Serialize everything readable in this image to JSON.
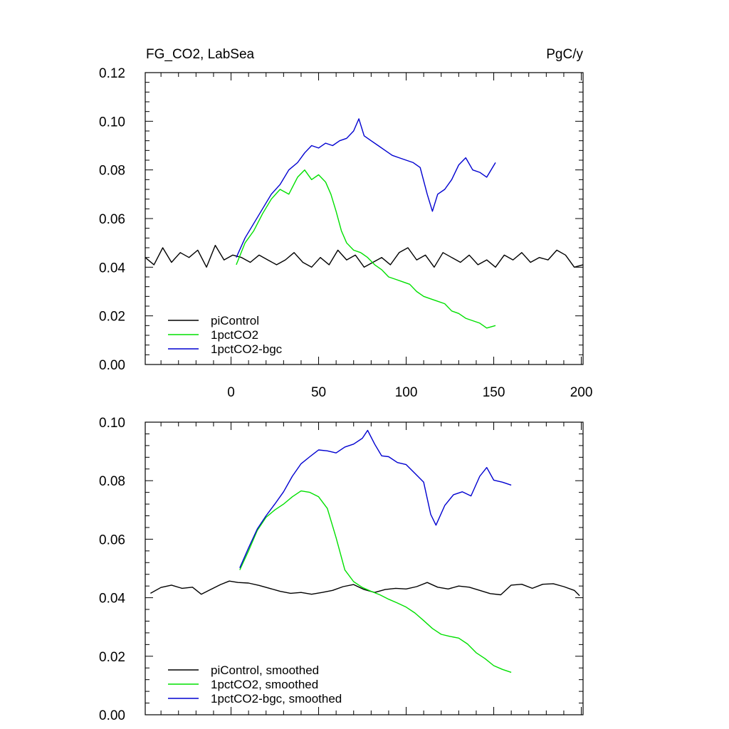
{
  "colors": {
    "piControl": "#000000",
    "1pctCO2": "#00e000",
    "1pctCO2-bgc": "#0000d0"
  },
  "chart_data": [
    {
      "type": "line",
      "title_left": "FG_CO2, LabSea",
      "title_right": "PgC/y",
      "xlim": [
        -49,
        201
      ],
      "ylim": [
        0,
        0.12
      ],
      "xticks": [
        "0",
        "50",
        "100",
        "150",
        "200"
      ],
      "yticks": [
        "0.00",
        "0.02",
        "0.04",
        "0.06",
        "0.08",
        "0.10",
        "0.12"
      ],
      "legend_position": "bottom-left",
      "series": [
        {
          "name": "piControl",
          "points": [
            [
              -49,
              0.044
            ],
            [
              -44,
              0.041
            ],
            [
              -39,
              0.048
            ],
            [
              -34,
              0.042
            ],
            [
              -29,
              0.046
            ],
            [
              -24,
              0.044
            ],
            [
              -19,
              0.047
            ],
            [
              -14,
              0.04
            ],
            [
              -9,
              0.049
            ],
            [
              -4,
              0.043
            ],
            [
              1,
              0.045
            ],
            [
              6,
              0.044
            ],
            [
              11,
              0.042
            ],
            [
              16,
              0.045
            ],
            [
              21,
              0.043
            ],
            [
              26,
              0.041
            ],
            [
              31,
              0.043
            ],
            [
              36,
              0.046
            ],
            [
              41,
              0.042
            ],
            [
              46,
              0.04
            ],
            [
              51,
              0.044
            ],
            [
              56,
              0.041
            ],
            [
              61,
              0.047
            ],
            [
              66,
              0.043
            ],
            [
              71,
              0.045
            ],
            [
              76,
              0.04
            ],
            [
              81,
              0.042
            ],
            [
              86,
              0.044
            ],
            [
              91,
              0.041
            ],
            [
              96,
              0.046
            ],
            [
              101,
              0.048
            ],
            [
              106,
              0.043
            ],
            [
              111,
              0.045
            ],
            [
              116,
              0.04
            ],
            [
              121,
              0.046
            ],
            [
              126,
              0.044
            ],
            [
              131,
              0.042
            ],
            [
              136,
              0.045
            ],
            [
              141,
              0.041
            ],
            [
              146,
              0.043
            ],
            [
              151,
              0.04
            ],
            [
              156,
              0.045
            ],
            [
              161,
              0.043
            ],
            [
              166,
              0.046
            ],
            [
              171,
              0.042
            ],
            [
              176,
              0.044
            ],
            [
              181,
              0.043
            ],
            [
              186,
              0.047
            ],
            [
              191,
              0.045
            ],
            [
              196,
              0.04
            ],
            [
              201,
              0.041
            ]
          ]
        },
        {
          "name": "1pctCO2",
          "points": [
            [
              3,
              0.041
            ],
            [
              8,
              0.05
            ],
            [
              13,
              0.055
            ],
            [
              18,
              0.062
            ],
            [
              23,
              0.068
            ],
            [
              28,
              0.072
            ],
            [
              33,
              0.07
            ],
            [
              38,
              0.077
            ],
            [
              42,
              0.08
            ],
            [
              46,
              0.076
            ],
            [
              50,
              0.078
            ],
            [
              54,
              0.075
            ],
            [
              57,
              0.07
            ],
            [
              60,
              0.063
            ],
            [
              63,
              0.055
            ],
            [
              66,
              0.05
            ],
            [
              70,
              0.047
            ],
            [
              74,
              0.046
            ],
            [
              78,
              0.044
            ],
            [
              82,
              0.041
            ],
            [
              86,
              0.039
            ],
            [
              90,
              0.036
            ],
            [
              94,
              0.035
            ],
            [
              98,
              0.034
            ],
            [
              102,
              0.033
            ],
            [
              106,
              0.03
            ],
            [
              110,
              0.028
            ],
            [
              114,
              0.027
            ],
            [
              118,
              0.026
            ],
            [
              122,
              0.025
            ],
            [
              126,
              0.022
            ],
            [
              130,
              0.021
            ],
            [
              134,
              0.019
            ],
            [
              138,
              0.018
            ],
            [
              142,
              0.017
            ],
            [
              146,
              0.015
            ],
            [
              151,
              0.016
            ]
          ]
        },
        {
          "name": "1pctCO2-bgc",
          "points": [
            [
              3,
              0.044
            ],
            [
              8,
              0.052
            ],
            [
              13,
              0.058
            ],
            [
              18,
              0.064
            ],
            [
              23,
              0.07
            ],
            [
              28,
              0.074
            ],
            [
              33,
              0.08
            ],
            [
              38,
              0.083
            ],
            [
              42,
              0.087
            ],
            [
              46,
              0.09
            ],
            [
              50,
              0.089
            ],
            [
              54,
              0.091
            ],
            [
              58,
              0.09
            ],
            [
              62,
              0.092
            ],
            [
              66,
              0.093
            ],
            [
              70,
              0.096
            ],
            [
              73,
              0.101
            ],
            [
              76,
              0.094
            ],
            [
              80,
              0.092
            ],
            [
              84,
              0.09
            ],
            [
              88,
              0.088
            ],
            [
              92,
              0.086
            ],
            [
              96,
              0.085
            ],
            [
              100,
              0.084
            ],
            [
              104,
              0.083
            ],
            [
              108,
              0.081
            ],
            [
              112,
              0.07
            ],
            [
              115,
              0.063
            ],
            [
              118,
              0.07
            ],
            [
              122,
              0.072
            ],
            [
              126,
              0.076
            ],
            [
              130,
              0.082
            ],
            [
              134,
              0.085
            ],
            [
              138,
              0.08
            ],
            [
              142,
              0.079
            ],
            [
              146,
              0.077
            ],
            [
              151,
              0.083
            ]
          ]
        }
      ]
    },
    {
      "type": "line",
      "xlim": [
        -49,
        201
      ],
      "ylim": [
        0,
        0.1
      ],
      "yticks": [
        "0.00",
        "0.02",
        "0.04",
        "0.06",
        "0.08",
        "0.10"
      ],
      "legend_position": "bottom-left",
      "series": [
        {
          "name": "piControl, smoothed",
          "points": [
            [
              -46,
              0.0415
            ],
            [
              -40,
              0.0435
            ],
            [
              -34,
              0.0443
            ],
            [
              -28,
              0.0432
            ],
            [
              -22,
              0.0436
            ],
            [
              -17,
              0.0412
            ],
            [
              -12,
              0.0427
            ],
            [
              -6,
              0.0445
            ],
            [
              -1,
              0.0457
            ],
            [
              4,
              0.0452
            ],
            [
              10,
              0.045
            ],
            [
              16,
              0.0442
            ],
            [
              22,
              0.0432
            ],
            [
              28,
              0.0422
            ],
            [
              34,
              0.0415
            ],
            [
              40,
              0.0418
            ],
            [
              46,
              0.0412
            ],
            [
              52,
              0.0418
            ],
            [
              58,
              0.0425
            ],
            [
              64,
              0.0438
            ],
            [
              70,
              0.0445
            ],
            [
              76,
              0.0428
            ],
            [
              82,
              0.0418
            ],
            [
              88,
              0.0428
            ],
            [
              94,
              0.0432
            ],
            [
              100,
              0.043
            ],
            [
              106,
              0.0438
            ],
            [
              112,
              0.0452
            ],
            [
              118,
              0.0436
            ],
            [
              124,
              0.043
            ],
            [
              130,
              0.044
            ],
            [
              136,
              0.0436
            ],
            [
              142,
              0.0425
            ],
            [
              148,
              0.0414
            ],
            [
              154,
              0.041
            ],
            [
              160,
              0.0443
            ],
            [
              166,
              0.0446
            ],
            [
              172,
              0.0432
            ],
            [
              178,
              0.0446
            ],
            [
              184,
              0.0448
            ],
            [
              190,
              0.0438
            ],
            [
              196,
              0.0425
            ],
            [
              199,
              0.0407
            ]
          ]
        },
        {
          "name": "1pctCO2, smoothed",
          "points": [
            [
              5,
              0.0495
            ],
            [
              10,
              0.056
            ],
            [
              15,
              0.063
            ],
            [
              20,
              0.0675
            ],
            [
              25,
              0.07
            ],
            [
              30,
              0.072
            ],
            [
              35,
              0.0745
            ],
            [
              40,
              0.0765
            ],
            [
              45,
              0.076
            ],
            [
              50,
              0.0745
            ],
            [
              55,
              0.0705
            ],
            [
              60,
              0.0605
            ],
            [
              65,
              0.0495
            ],
            [
              70,
              0.0455
            ],
            [
              75,
              0.0435
            ],
            [
              80,
              0.0422
            ],
            [
              85,
              0.041
            ],
            [
              90,
              0.0395
            ],
            [
              95,
              0.0382
            ],
            [
              100,
              0.0368
            ],
            [
              105,
              0.0348
            ],
            [
              110,
              0.0322
            ],
            [
              115,
              0.0295
            ],
            [
              120,
              0.0275
            ],
            [
              125,
              0.0268
            ],
            [
              130,
              0.0262
            ],
            [
              135,
              0.0242
            ],
            [
              140,
              0.0212
            ],
            [
              145,
              0.0192
            ],
            [
              150,
              0.0168
            ],
            [
              155,
              0.0155
            ],
            [
              160,
              0.0145
            ]
          ]
        },
        {
          "name": "1pctCO2-bgc, smoothed",
          "points": [
            [
              5,
              0.0502
            ],
            [
              10,
              0.057
            ],
            [
              15,
              0.0635
            ],
            [
              20,
              0.068
            ],
            [
              25,
              0.072
            ],
            [
              30,
              0.0762
            ],
            [
              35,
              0.0815
            ],
            [
              40,
              0.0858
            ],
            [
              45,
              0.0882
            ],
            [
              50,
              0.0905
            ],
            [
              55,
              0.0902
            ],
            [
              60,
              0.0895
            ],
            [
              65,
              0.0915
            ],
            [
              70,
              0.0925
            ],
            [
              75,
              0.0945
            ],
            [
              78,
              0.0972
            ],
            [
              82,
              0.0925
            ],
            [
              86,
              0.0885
            ],
            [
              90,
              0.0882
            ],
            [
              95,
              0.0862
            ],
            [
              100,
              0.0855
            ],
            [
              105,
              0.0825
            ],
            [
              110,
              0.0795
            ],
            [
              114,
              0.0685
            ],
            [
              117,
              0.0648
            ],
            [
              122,
              0.0715
            ],
            [
              127,
              0.0752
            ],
            [
              132,
              0.0762
            ],
            [
              137,
              0.0748
            ],
            [
              142,
              0.0815
            ],
            [
              146,
              0.0845
            ],
            [
              150,
              0.0802
            ],
            [
              155,
              0.0795
            ],
            [
              160,
              0.0785
            ]
          ]
        }
      ]
    }
  ]
}
